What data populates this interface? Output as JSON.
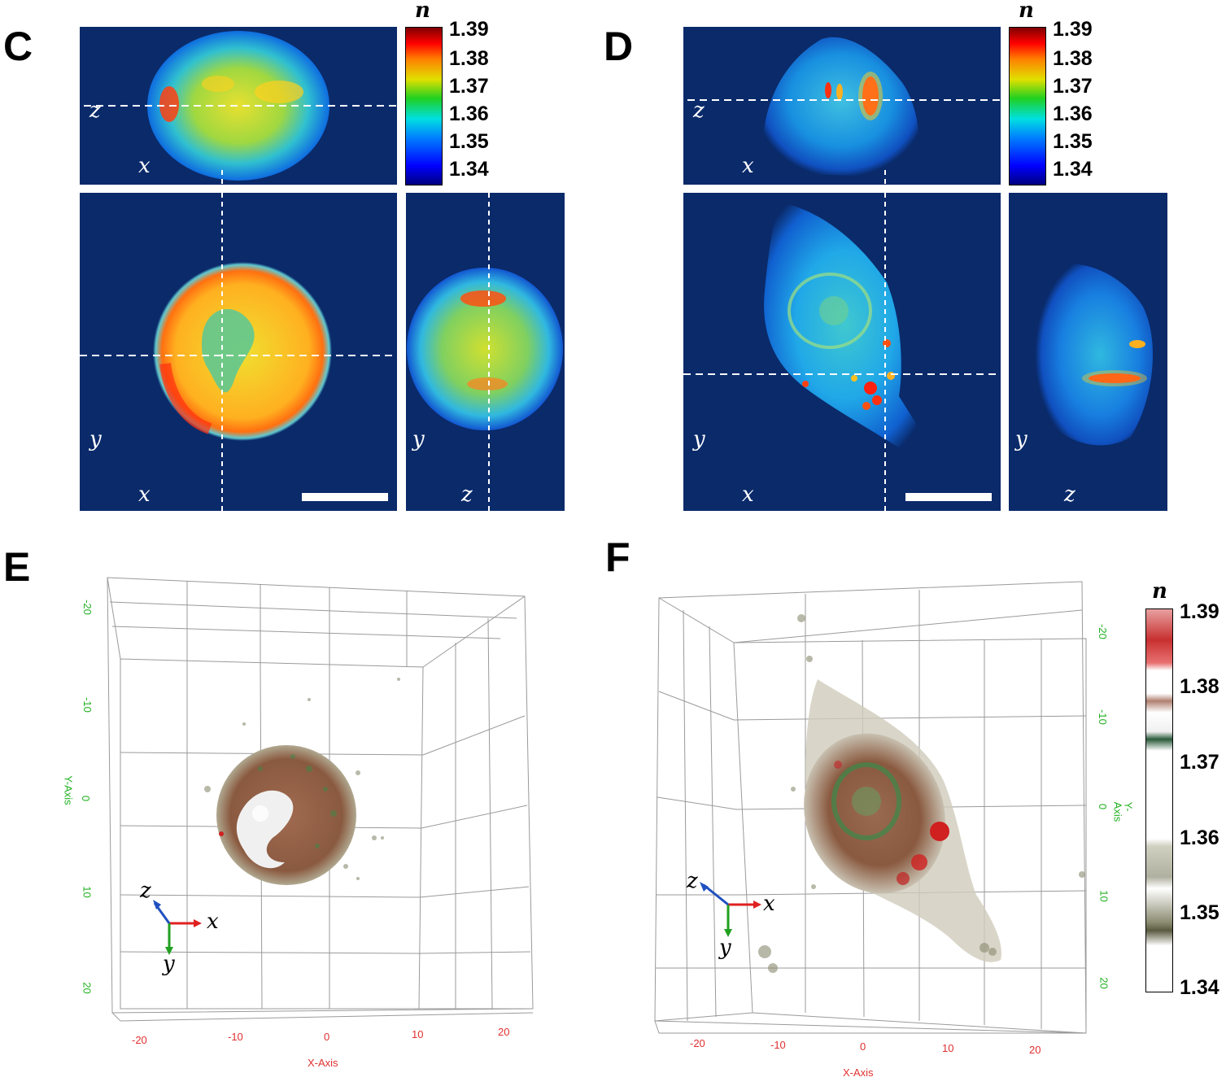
{
  "panels": {
    "C": {
      "letter": "C"
    },
    "D": {
      "letter": "D"
    },
    "E": {
      "letter": "E"
    },
    "F": {
      "letter": "F"
    }
  },
  "colorbar_jet": {
    "symbol": "n",
    "ticks": [
      "1.39",
      "1.38",
      "1.37",
      "1.36",
      "1.35",
      "1.34"
    ]
  },
  "colorbar_render": {
    "symbol": "n",
    "ticks": [
      "1.39",
      "1.38",
      "1.37",
      "1.36",
      "1.35",
      "1.34"
    ]
  },
  "axis_labels": {
    "zx": {
      "v": "z",
      "h": "x"
    },
    "yx": {
      "v": "y",
      "h": "x"
    },
    "yz": {
      "v": "y",
      "h": "z"
    },
    "xyz": {
      "x": "x",
      "y": "y",
      "z": "z"
    }
  },
  "plot_E": {
    "x_ticks": [
      "-20",
      "-10",
      "0",
      "10",
      "20"
    ],
    "y_ticks": [
      "-20",
      "-10",
      "0",
      "10",
      "20"
    ],
    "x_title": "X-Axis",
    "y_title": "Y-Axis"
  },
  "plot_F": {
    "x_ticks": [
      "-20",
      "-10",
      "0",
      "10",
      "20"
    ],
    "y_ticks": [
      "-20",
      "-10",
      "0",
      "10",
      "20"
    ],
    "x_title": "X-Axis",
    "y_title": "Y-Axis"
  },
  "colors": {
    "background_dark": "#0a2a6a",
    "axis_x": "#e02020",
    "axis_y": "#20a020",
    "axis_z": "#2050c0",
    "tick_red": "#e03030",
    "tick_green": "#20b020"
  }
}
